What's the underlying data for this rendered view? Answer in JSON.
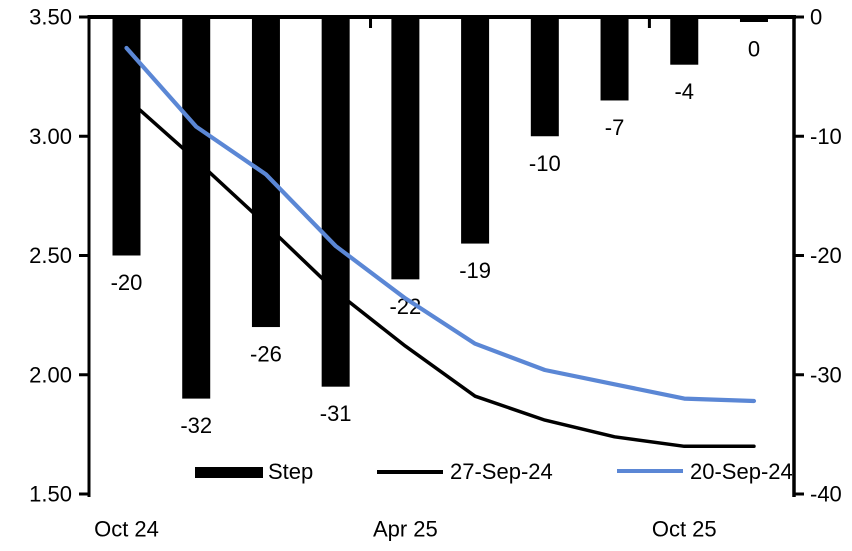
{
  "chart": {
    "background": "#ffffff",
    "text_color": "#000000"
  },
  "chart_data": {
    "type": "combo-bar-line",
    "title": "",
    "num_categories": 10,
    "x_tick_labels": [
      {
        "index": 0,
        "label": "Oct 24"
      },
      {
        "index": 4,
        "label": "Apr 25"
      },
      {
        "index": 8,
        "label": "Oct 25"
      }
    ],
    "left_axis": {
      "min": 1.5,
      "max": 3.5,
      "tick_values": [
        3.5,
        3.0,
        2.5,
        2.0,
        1.5
      ],
      "tick_labels": [
        "3.50",
        "3.00",
        "2.50",
        "2.00",
        "1.50"
      ]
    },
    "right_axis": {
      "min": -40,
      "max": 0,
      "tick_values": [
        0,
        -10,
        -20,
        -30,
        -40
      ],
      "tick_labels": [
        "0",
        "-10",
        "-20",
        "-30",
        "-40"
      ]
    },
    "bar_series": {
      "name": "Step",
      "axis": "right",
      "color": "#000000",
      "values": [
        -20,
        -32,
        -26,
        -31,
        -22,
        -19,
        -10,
        -7,
        -4,
        0
      ],
      "data_labels": [
        "-20",
        "-32",
        "-26",
        "-31",
        "-22",
        "-19",
        "-10",
        "-7",
        "-4",
        "0"
      ]
    },
    "line_series": [
      {
        "name": "27-Sep-24",
        "axis": "left",
        "color": "#000000",
        "values": [
          3.16,
          2.9,
          2.63,
          2.35,
          2.12,
          1.91,
          1.81,
          1.74,
          1.7,
          1.7
        ]
      },
      {
        "name": "20-Sep-24",
        "axis": "left",
        "color": "#5B87D5",
        "values": [
          3.37,
          3.04,
          2.84,
          2.54,
          2.32,
          2.13,
          2.02,
          1.96,
          1.9,
          1.89
        ]
      }
    ],
    "legend": {
      "position": "bottom",
      "entries": [
        {
          "label": "Step",
          "swatch": "bar",
          "color": "#000000"
        },
        {
          "label": "27-Sep-24",
          "swatch": "line",
          "color": "#000000"
        },
        {
          "label": "20-Sep-24",
          "swatch": "line",
          "color": "#5B87D5"
        }
      ]
    },
    "grid": false
  }
}
